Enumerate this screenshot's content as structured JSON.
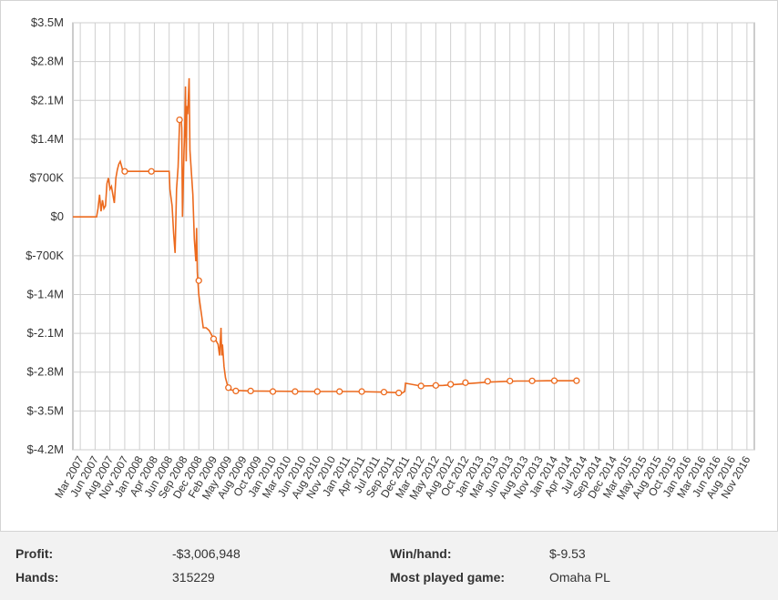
{
  "chart_data": {
    "type": "line",
    "title": "",
    "xlabel": "",
    "ylabel": "",
    "ylim": [
      -4200000,
      3500000
    ],
    "grid": true,
    "y_ticks": [
      "$3.5M",
      "$2.8M",
      "$2.1M",
      "$1.4M",
      "$700K",
      "$0",
      "$-700K",
      "$-1.4M",
      "$-2.1M",
      "$-2.8M",
      "$-3.5M",
      "$-4.2M"
    ],
    "x_ticks": [
      "Mar 2007",
      "Jun 2007",
      "Aug 2007",
      "Nov 2007",
      "Jan 2008",
      "Apr 2008",
      "Jun 2008",
      "Sep 2008",
      "Dec 2008",
      "Feb 2009",
      "May 2009",
      "Aug 2009",
      "Oct 2009",
      "Jan 2010",
      "Mar 2010",
      "Jun 2010",
      "Aug 2010",
      "Nov 2010",
      "Jan 2011",
      "Apr 2011",
      "Jul 2011",
      "Sep 2011",
      "Dec 2011",
      "Mar 2012",
      "May 2012",
      "Aug 2012",
      "Oct 2012",
      "Jan 2013",
      "Mar 2013",
      "Jun 2013",
      "Aug 2013",
      "Nov 2013",
      "Jan 2014",
      "Apr 2014",
      "Jul 2014",
      "Sep 2014",
      "Dec 2014",
      "Mar 2015",
      "May 2015",
      "Aug 2015",
      "Oct 2015",
      "Jan 2016",
      "Mar 2016",
      "Jun 2016",
      "Aug 2016",
      "Nov 2016"
    ],
    "series": [
      {
        "color": "#ec6a1e",
        "points": [
          [
            0,
            0
          ],
          [
            1.6,
            0
          ],
          [
            1.7,
            150000
          ],
          [
            1.8,
            400000
          ],
          [
            1.9,
            100000
          ],
          [
            2.0,
            300000
          ],
          [
            2.1,
            150000
          ],
          [
            2.2,
            200000
          ],
          [
            2.3,
            600000
          ],
          [
            2.4,
            700000
          ],
          [
            2.5,
            500000
          ],
          [
            2.6,
            550000
          ],
          [
            2.7,
            400000
          ],
          [
            2.8,
            250000
          ],
          [
            2.9,
            700000
          ],
          [
            3.0,
            850000
          ],
          [
            3.1,
            950000
          ],
          [
            3.2,
            1000000
          ],
          [
            3.3,
            900000
          ],
          [
            3.4,
            800000
          ],
          [
            3.5,
            820000
          ],
          [
            4.0,
            820000
          ],
          [
            5.0,
            820000
          ],
          [
            6.0,
            820000
          ],
          [
            6.5,
            820000
          ],
          [
            6.55,
            500000
          ],
          [
            6.7,
            200000
          ],
          [
            6.8,
            -300000
          ],
          [
            6.9,
            -650000
          ],
          [
            7.0,
            500000
          ],
          [
            7.1,
            900000
          ],
          [
            7.2,
            1700000
          ],
          [
            7.3,
            1800000
          ],
          [
            7.35,
            1600000
          ],
          [
            7.4,
            0
          ],
          [
            7.5,
            1200000
          ],
          [
            7.55,
            1600000
          ],
          [
            7.6,
            2350000
          ],
          [
            7.65,
            1000000
          ],
          [
            7.7,
            2000000
          ],
          [
            7.75,
            1850000
          ],
          [
            7.85,
            2500000
          ],
          [
            7.9,
            1200000
          ],
          [
            8.0,
            800000
          ],
          [
            8.1,
            400000
          ],
          [
            8.2,
            -400000
          ],
          [
            8.3,
            -800000
          ],
          [
            8.35,
            -200000
          ],
          [
            8.4,
            -1000000
          ],
          [
            8.5,
            -1400000
          ],
          [
            8.6,
            -1600000
          ],
          [
            8.7,
            -1800000
          ],
          [
            8.8,
            -2000000
          ],
          [
            9.0,
            -2000000
          ],
          [
            9.2,
            -2050000
          ],
          [
            9.4,
            -2150000
          ],
          [
            9.6,
            -2200000
          ],
          [
            9.8,
            -2300000
          ],
          [
            9.9,
            -2500000
          ],
          [
            10.0,
            -2000000
          ],
          [
            10.05,
            -2500000
          ],
          [
            10.1,
            -2300000
          ],
          [
            10.2,
            -2700000
          ],
          [
            10.3,
            -2900000
          ],
          [
            10.45,
            -3050000
          ],
          [
            10.6,
            -3120000
          ],
          [
            11.0,
            -3130000
          ],
          [
            12.0,
            -3140000
          ],
          [
            16.0,
            -3150000
          ],
          [
            19.0,
            -3150000
          ],
          [
            21.0,
            -3160000
          ],
          [
            22.0,
            -3170000
          ],
          [
            22.2,
            -3180000
          ],
          [
            22.4,
            -3150000
          ],
          [
            22.45,
            -3000000
          ],
          [
            23.5,
            -3050000
          ],
          [
            25.0,
            -3040000
          ],
          [
            26.0,
            -3020000
          ],
          [
            27.0,
            -3000000
          ],
          [
            28.0,
            -2980000
          ],
          [
            29.0,
            -2970000
          ],
          [
            30.0,
            -2960000
          ],
          [
            31.0,
            -2960000
          ],
          [
            32.0,
            -2955000
          ],
          [
            33.0,
            -2955000
          ],
          [
            34.0,
            -2955000
          ]
        ],
        "markers": [
          [
            3.5,
            820000
          ],
          [
            5.3,
            820000
          ],
          [
            7.2,
            1750000
          ],
          [
            8.5,
            -1150000
          ],
          [
            9.5,
            -2200000
          ],
          [
            10.5,
            -3080000
          ],
          [
            11.0,
            -3140000
          ],
          [
            12.0,
            -3140000
          ],
          [
            13.5,
            -3150000
          ],
          [
            15.0,
            -3150000
          ],
          [
            16.5,
            -3150000
          ],
          [
            18.0,
            -3150000
          ],
          [
            19.5,
            -3150000
          ],
          [
            21.0,
            -3160000
          ],
          [
            22.0,
            -3175000
          ],
          [
            23.5,
            -3050000
          ],
          [
            24.5,
            -3040000
          ],
          [
            25.5,
            -3020000
          ],
          [
            26.5,
            -2990000
          ],
          [
            28.0,
            -2965000
          ],
          [
            29.5,
            -2960000
          ],
          [
            31.0,
            -2958000
          ],
          [
            32.5,
            -2955000
          ],
          [
            34.0,
            -2955000
          ]
        ]
      }
    ]
  },
  "stats": {
    "profit_label": "Profit:",
    "profit_value": "-$3,006,948",
    "hands_label": "Hands:",
    "hands_value": "315229",
    "winhand_label": "Win/hand:",
    "winhand_value": "$-9.53",
    "game_label": "Most played game:",
    "game_value": "Omaha PL"
  }
}
